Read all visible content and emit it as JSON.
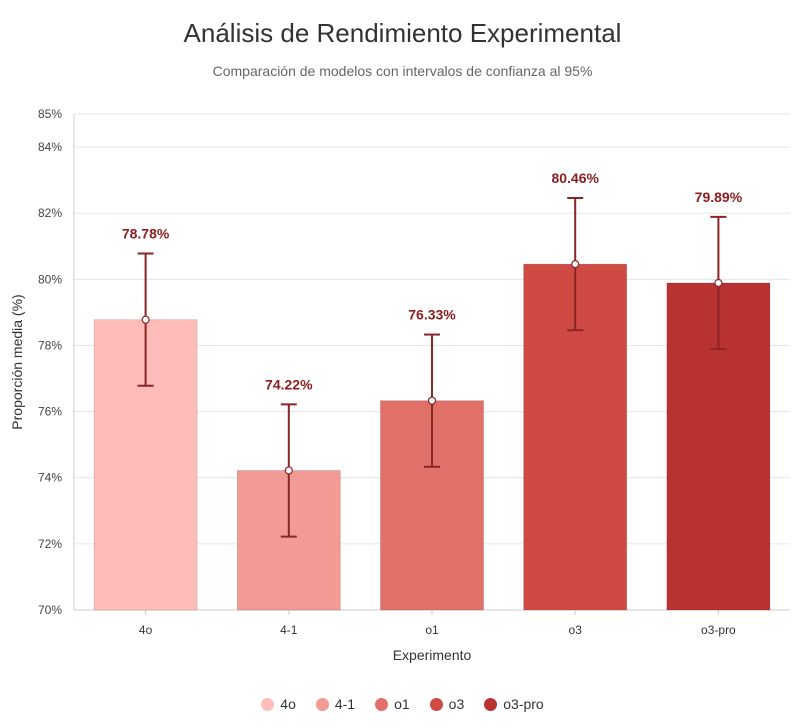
{
  "chart_data": {
    "type": "bar",
    "title": "Análisis de Rendimiento Experimental",
    "subtitle": "Comparación de modelos con intervalos de confianza al 95%",
    "xlabel": "Experimento",
    "ylabel": "Proporción media (%)",
    "ylim": [
      70,
      85
    ],
    "yticks": [
      "70%",
      "72%",
      "74%",
      "76%",
      "78%",
      "80%",
      "82%",
      "84%",
      "85%"
    ],
    "grid": true,
    "legend_position": "bottom",
    "categories": [
      "4o",
      "4-1",
      "o1",
      "o3",
      "o3-pro"
    ],
    "values": [
      78.78,
      74.22,
      76.33,
      80.46,
      79.89
    ],
    "value_labels": [
      "78.78%",
      "74.22%",
      "76.33%",
      "80.46%",
      "79.89%"
    ],
    "ci_lower": [
      76.78,
      72.22,
      74.33,
      78.46,
      77.89
    ],
    "ci_upper": [
      80.78,
      76.22,
      78.33,
      82.46,
      81.89
    ],
    "colors": [
      "#ffbcb8",
      "#f29b94",
      "#e07068",
      "#cf4a42",
      "#b83232"
    ],
    "errorbar_color": "#8b2525",
    "label_color": "#8b2020"
  }
}
